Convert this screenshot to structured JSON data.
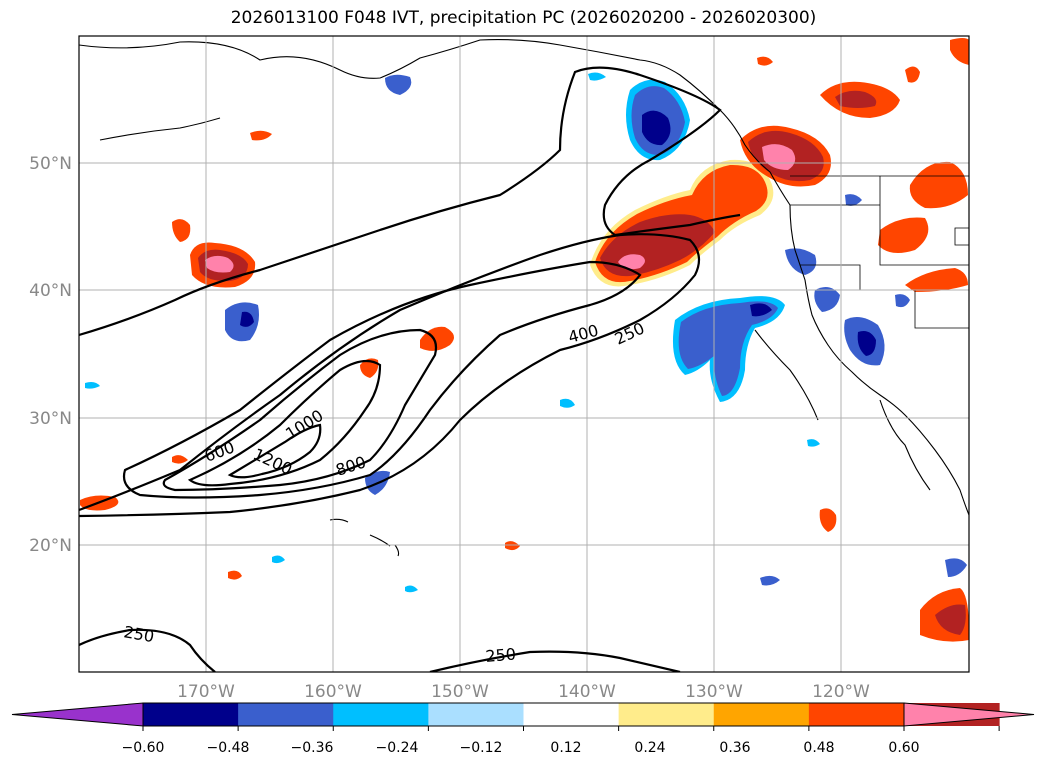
{
  "title": "2026013100 F048 IVT, precipitation PC (2026020200 - 2026020300)",
  "lat_labels": [
    "50°N",
    "40°N",
    "30°N",
    "20°N"
  ],
  "lon_labels": [
    "170°W",
    "160°W",
    "150°W",
    "140°W",
    "130°W",
    "120°W"
  ],
  "ivt_contours": [
    "250",
    "400",
    "600",
    "800",
    "1000",
    "1200",
    "250",
    "250"
  ],
  "colorbar": {
    "ticks": [
      "−0.60",
      "−0.48",
      "−0.36",
      "−0.24",
      "−0.12",
      "0.12",
      "0.24",
      "0.36",
      "0.48",
      "0.60"
    ],
    "colors": [
      "#9932cc",
      "#00008b",
      "#3a5fcd",
      "#00bfff",
      "#aadfff",
      "#ffffff",
      "#ffec8b",
      "#ffa500",
      "#ff4500",
      "#b22222",
      "#ff82ab"
    ]
  }
}
